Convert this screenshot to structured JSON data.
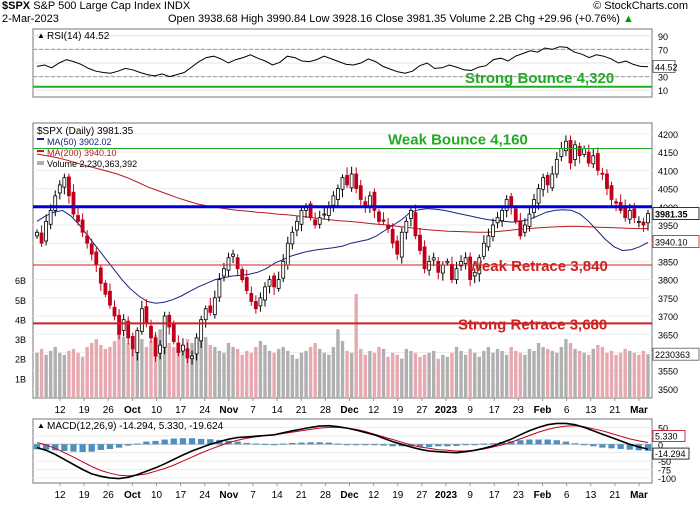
{
  "header": {
    "symbol": "$SPX",
    "name": "S&P 500 Large Cap Index",
    "exchange": "INDX",
    "watermark": "© StockCharts.com",
    "date": "2-Mar-2023",
    "quote": "Open 3938.68  High 3990.84  Low 3928.16  Close 3981.35  Volume 2.2B  Chg +29.96 (+0.76%)",
    "quote_arrow": "▲"
  },
  "colors": {
    "up": "#000000",
    "down": "#c0001a",
    "ma50": "#1a237e",
    "ma200": "#b71c1c",
    "volume_up": "#b0b0b0",
    "volume_down": "#e8a8b0",
    "blue_line": "#0000dd",
    "green_line": "#22aa22",
    "red_line": "#cc2222"
  },
  "chart_data": [
    {
      "type": "line",
      "panel": "RSI",
      "legend": "RSI(14) 44.52",
      "last_value": "44.52",
      "ylim": [
        0,
        100
      ],
      "y_ticks": [
        "90",
        "70",
        "50",
        "30",
        "10"
      ],
      "values": [
        45,
        47,
        43,
        50,
        55,
        52,
        48,
        42,
        38,
        36,
        35,
        38,
        42,
        40,
        36,
        33,
        31,
        34,
        30,
        33,
        36,
        44,
        52,
        58,
        60,
        56,
        50,
        55,
        58,
        62,
        57,
        53,
        47,
        51,
        60,
        58,
        53,
        52,
        55,
        60,
        56,
        52,
        48,
        47,
        50,
        56,
        52,
        45,
        41,
        37,
        35,
        38,
        46,
        50,
        42,
        43,
        47,
        44,
        40,
        39,
        44,
        46,
        55,
        57,
        53,
        60,
        64,
        68,
        66,
        72,
        70,
        74,
        73,
        66,
        63,
        58,
        62,
        60,
        56,
        50,
        53,
        48,
        45,
        44.52
      ]
    },
    {
      "type": "candlestick",
      "panel": "Price",
      "legend": "$SPX (Daily) 3981.35",
      "ylim": [
        3475,
        4230
      ],
      "y_ticks": [
        "4200",
        "4150",
        "4100",
        "4050",
        "4000",
        "3950",
        "3900",
        "3850",
        "3800",
        "3750",
        "3700",
        "3650",
        "3600",
        "3550",
        "3500"
      ],
      "price_tags": [
        "3981.35",
        "3940.10"
      ],
      "closes": [
        3930,
        3900,
        3960,
        3990,
        4030,
        4060,
        4080,
        4030,
        3980,
        3960,
        3930,
        3900,
        3870,
        3840,
        3790,
        3760,
        3730,
        3700,
        3650,
        3690,
        3640,
        3610,
        3660,
        3720,
        3680,
        3640,
        3590,
        3620,
        3700,
        3670,
        3630,
        3600,
        3620,
        3585,
        3590,
        3640,
        3690,
        3720,
        3710,
        3750,
        3800,
        3830,
        3860,
        3870,
        3830,
        3800,
        3770,
        3740,
        3720,
        3750,
        3780,
        3800,
        3780,
        3800,
        3850,
        3900,
        3930,
        3960,
        3990,
        4000,
        3970,
        3950,
        3970,
        3980,
        4000,
        4030,
        4050,
        4080,
        4060,
        4090,
        4050,
        4020,
        4000,
        4030,
        3990,
        3960,
        3960,
        3940,
        3900,
        3870,
        3930,
        3960,
        3990,
        3920,
        3880,
        3830,
        3850,
        3860,
        3820,
        3840,
        3850,
        3800,
        3830,
        3850,
        3860,
        3800,
        3820,
        3860,
        3900,
        3920,
        3950,
        3970,
        3990,
        4020,
        4000,
        3960,
        3920,
        3950,
        3980,
        4020,
        4050,
        4080,
        4060,
        4090,
        4130,
        4160,
        4180,
        4120,
        4170,
        4140,
        4160,
        4120,
        4140,
        4100,
        4090,
        4050,
        4020,
        4010,
        3990,
        3970,
        3990,
        3970,
        3960,
        3950,
        3981.35
      ],
      "ma_series": [
        {
          "name": "MA(50) 3902.02",
          "values": [
            3960,
            3975,
            3985,
            3990,
            3975,
            3950,
            3920,
            3890,
            3860,
            3830,
            3800,
            3775,
            3755,
            3740,
            3735,
            3738,
            3745,
            3755,
            3768,
            3780,
            3790,
            3800,
            3805,
            3810,
            3812,
            3815,
            3820,
            3830,
            3845,
            3855,
            3865,
            3872,
            3878,
            3882,
            3885,
            3888,
            3892,
            3900,
            3905,
            3910,
            3920,
            3935,
            3950,
            3965,
            3985,
            3992,
            3995,
            3993,
            3990,
            3985,
            3980,
            3975,
            3970,
            3965,
            3962,
            3960,
            3958,
            3960,
            3965,
            3975,
            3985,
            3990,
            3992,
            3990,
            3980,
            3960,
            3935,
            3910,
            3890,
            3880,
            3882,
            3890,
            3902.02
          ]
        },
        {
          "name": "MA(200) 3940.10",
          "values": [
            4145,
            4140,
            4135,
            4128,
            4120,
            4112,
            4105,
            4098,
            4090,
            4080,
            4068,
            4055,
            4045,
            4035,
            4025,
            4016,
            4008,
            4002,
            3998,
            3994,
            3990,
            3988,
            3985,
            3983,
            3980,
            3978,
            3975,
            3972,
            3968,
            3965,
            3962,
            3960,
            3958,
            3955,
            3952,
            3950,
            3946,
            3943,
            3940,
            3937,
            3935,
            3933,
            3932,
            3931,
            3930,
            3930,
            3932,
            3935,
            3938,
            3940,
            3942,
            3944,
            3945,
            3946,
            3946,
            3945,
            3944,
            3943,
            3942,
            3941,
            3940,
            3940.1
          ]
        }
      ],
      "volume_legend": "Volume 2,230,363,392",
      "volume_tag": "2230363",
      "volume_ticks": [
        "6B",
        "5B",
        "4B",
        "3B",
        "2B",
        "1B"
      ],
      "volume_ylim": [
        0,
        7
      ],
      "volumes": [
        2.3,
        2.5,
        2.2,
        2.4,
        2.6,
        2.3,
        2.2,
        2.4,
        2.5,
        2.3,
        2.1,
        2.6,
        2.8,
        3.0,
        2.7,
        2.5,
        2.6,
        2.9,
        3.3,
        3.1,
        2.8,
        2.7,
        3.4,
        3.0,
        2.6,
        2.9,
        3.2,
        3.5,
        3.0,
        2.8,
        2.6,
        2.4,
        2.7,
        3.0,
        2.8,
        2.5,
        2.9,
        3.1,
        2.7,
        2.6,
        2.4,
        2.3,
        2.8,
        2.6,
        2.5,
        2.2,
        2.4,
        2.3,
        2.6,
        2.9,
        2.7,
        2.4,
        2.3,
        2.5,
        2.6,
        2.4,
        2.2,
        2.0,
        2.3,
        2.4,
        2.6,
        2.8,
        2.5,
        2.3,
        2.2,
        2.6,
        3.5,
        2.9,
        2.4,
        2.3,
        5.3,
        2.5,
        2.2,
        2.4,
        2.3,
        2.6,
        2.5,
        2.1,
        2.3,
        2.2,
        2.0,
        2.5,
        2.4,
        2.3,
        2.1,
        2.2,
        2.3,
        2.4,
        2.0,
        2.2,
        2.1,
        2.3,
        2.6,
        2.4,
        2.2,
        2.5,
        2.3,
        2.1,
        2.4,
        2.6,
        2.3,
        2.5,
        2.4,
        2.2,
        2.6,
        2.4,
        2.3,
        2.2,
        2.5,
        2.4,
        2.8,
        2.6,
        2.5,
        2.4,
        2.3,
        2.6,
        3.0,
        2.8,
        2.5,
        2.4,
        2.3,
        2.2,
        2.5,
        2.7,
        2.6,
        2.3,
        2.4,
        2.2,
        2.3,
        2.5,
        2.4,
        2.3,
        2.2,
        2.4,
        2.23
      ],
      "annotations": [
        {
          "label": "Strong Bounce 4,320",
          "value": 4320,
          "color": "green",
          "panel": "RSI"
        },
        {
          "label": "Weak Bounce 4,160",
          "value": 4160,
          "color": "green"
        },
        {
          "label": "",
          "value": 4000,
          "color": "blue"
        },
        {
          "label": "Weak Retrace 3,840",
          "value": 3840,
          "color": "red"
        },
        {
          "label": "Strong Retrace 3,680",
          "value": 3680,
          "color": "red"
        }
      ]
    },
    {
      "type": "line",
      "panel": "MACD",
      "legend": "MACD(12,26,9) -14.294, 5.330, -19.624",
      "ylim": [
        -115,
        75
      ],
      "y_ticks": [
        "50",
        "25",
        "0",
        "-25",
        "-50",
        "-75",
        "-100"
      ],
      "value_tags": [
        "5.330",
        "-14.294"
      ],
      "series": [
        {
          "name": "MACD",
          "values": [
            -10,
            -18,
            -30,
            -45,
            -60,
            -75,
            -88,
            -95,
            -100,
            -102,
            -98,
            -90,
            -80,
            -70,
            -58,
            -45,
            -32,
            -20,
            -10,
            0,
            8,
            15,
            20,
            22,
            24,
            26,
            28,
            34,
            40,
            45,
            50,
            54,
            55,
            52,
            48,
            42,
            35,
            28,
            18,
            8,
            0,
            -8,
            -15,
            -20,
            -22,
            -24,
            -25,
            -22,
            -18,
            -12,
            -5,
            5,
            15,
            28,
            40,
            50,
            58,
            62,
            62,
            58,
            50,
            40,
            30,
            20,
            10,
            0,
            -8,
            -14.294
          ]
        },
        {
          "name": "Signal",
          "values": [
            5,
            -2,
            -12,
            -25,
            -38,
            -52,
            -66,
            -78,
            -86,
            -92,
            -94,
            -92,
            -88,
            -80,
            -72,
            -62,
            -50,
            -38,
            -26,
            -15,
            -5,
            5,
            12,
            18,
            22,
            25,
            28,
            32,
            36,
            40,
            44,
            48,
            50,
            50,
            48,
            44,
            38,
            30,
            22,
            14,
            6,
            -2,
            -8,
            -12,
            -16,
            -18,
            -20,
            -20,
            -18,
            -14,
            -8,
            -2,
            6,
            16,
            26,
            36,
            44,
            50,
            54,
            55,
            52,
            46,
            40,
            32,
            24,
            16,
            10,
            5.33
          ]
        }
      ],
      "histogram_last": "-19.624"
    }
  ],
  "x_axis": {
    "labels": [
      {
        "text": "12",
        "bold": false
      },
      {
        "text": "19",
        "bold": false
      },
      {
        "text": "26",
        "bold": false
      },
      {
        "text": "Oct",
        "bold": true
      },
      {
        "text": "10",
        "bold": false
      },
      {
        "text": "17",
        "bold": false
      },
      {
        "text": "24",
        "bold": false
      },
      {
        "text": "Nov",
        "bold": true
      },
      {
        "text": "7",
        "bold": false
      },
      {
        "text": "14",
        "bold": false
      },
      {
        "text": "21",
        "bold": false
      },
      {
        "text": "28",
        "bold": false
      },
      {
        "text": "Dec",
        "bold": true
      },
      {
        "text": "12",
        "bold": false
      },
      {
        "text": "19",
        "bold": false
      },
      {
        "text": "27",
        "bold": false
      },
      {
        "text": "2023",
        "bold": true
      },
      {
        "text": "9",
        "bold": false
      },
      {
        "text": "17",
        "bold": false
      },
      {
        "text": "23",
        "bold": false
      },
      {
        "text": "Feb",
        "bold": true
      },
      {
        "text": "6",
        "bold": false
      },
      {
        "text": "13",
        "bold": false
      },
      {
        "text": "21",
        "bold": false
      },
      {
        "text": "Mar",
        "bold": true
      }
    ]
  }
}
